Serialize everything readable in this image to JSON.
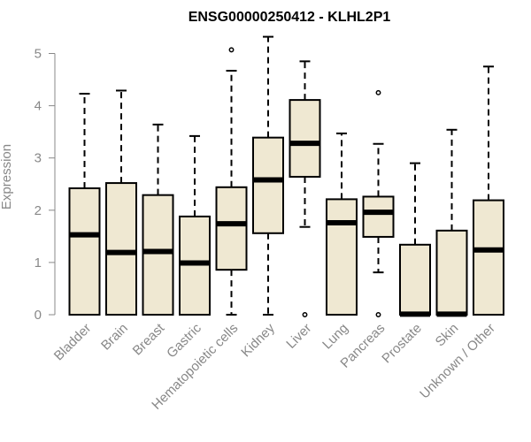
{
  "chart_data": {
    "type": "boxplot",
    "title": "ENSG00000250412 - KLHL2P1",
    "ylabel": "Expression",
    "xlabel": "",
    "ylim": [
      0,
      5.2
    ],
    "yticks": [
      0,
      1,
      2,
      3,
      4,
      5
    ],
    "box_fill": "#efe8d2",
    "stroke": "#000000",
    "axis_color": "#888888",
    "grid": false,
    "categories": [
      "Bladder",
      "Brain",
      "Breast",
      "Gastric",
      "Hematopoietic cells",
      "Kidney",
      "Liver",
      "Lung",
      "Pancreas",
      "Prostate",
      "Skin",
      "Unknown / Other"
    ],
    "series": [
      {
        "whisker_low": 0,
        "q1": 0,
        "median": 1.53,
        "q3": 2.42,
        "whisker_high": 4.23,
        "outliers": []
      },
      {
        "whisker_low": 0,
        "q1": 0,
        "median": 1.19,
        "q3": 2.52,
        "whisker_high": 4.29,
        "outliers": []
      },
      {
        "whisker_low": 0,
        "q1": 0,
        "median": 1.21,
        "q3": 2.29,
        "whisker_high": 3.64,
        "outliers": []
      },
      {
        "whisker_low": 0,
        "q1": 0,
        "median": 0.99,
        "q3": 1.88,
        "whisker_high": 3.42,
        "outliers": []
      },
      {
        "whisker_low": 0,
        "q1": 0.86,
        "median": 1.74,
        "q3": 2.44,
        "whisker_high": 4.67,
        "outliers": [
          5.07
        ]
      },
      {
        "whisker_low": 0,
        "q1": 1.56,
        "median": 2.58,
        "q3": 3.39,
        "whisker_high": 5.32,
        "outliers": []
      },
      {
        "whisker_low": 1.68,
        "q1": 2.64,
        "median": 3.28,
        "q3": 4.11,
        "whisker_high": 4.85,
        "outliers": [
          0
        ]
      },
      {
        "whisker_low": 0,
        "q1": 0,
        "median": 1.76,
        "q3": 2.21,
        "whisker_high": 3.47,
        "outliers": []
      },
      {
        "whisker_low": 0.81,
        "q1": 1.49,
        "median": 1.96,
        "q3": 2.26,
        "whisker_high": 3.27,
        "outliers": [
          4.25,
          0
        ]
      },
      {
        "whisker_low": 0,
        "q1": 0,
        "median": 0.01,
        "q3": 1.34,
        "whisker_high": 2.9,
        "outliers": []
      },
      {
        "whisker_low": 0,
        "q1": 0,
        "median": 0.01,
        "q3": 1.61,
        "whisker_high": 3.54,
        "outliers": []
      },
      {
        "whisker_low": 0,
        "q1": 0,
        "median": 1.24,
        "q3": 2.19,
        "whisker_high": 4.75,
        "outliers": []
      }
    ]
  }
}
